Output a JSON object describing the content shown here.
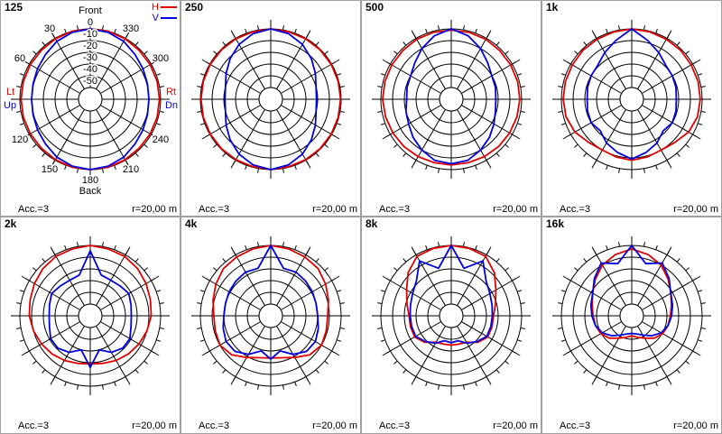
{
  "chart_data": [
    {
      "type": "polar",
      "title": "125",
      "theta": [
        0,
        15,
        30,
        45,
        60,
        75,
        90,
        105,
        120,
        135,
        150,
        165,
        180,
        195,
        210,
        225,
        240,
        255,
        270,
        285,
        300,
        315,
        330,
        345
      ],
      "rlim": [
        -60,
        0
      ],
      "rticks": [
        0,
        -10,
        -20,
        -30,
        -40,
        -50
      ],
      "rtick_labels": true,
      "theta_ticks": [
        30,
        60,
        120,
        150,
        180,
        210,
        240,
        300,
        330
      ],
      "front_label": "Front",
      "back_label": "Back",
      "h_side_labels": [
        "Lt",
        "Rt"
      ],
      "v_side_labels": [
        "Up",
        "Dn"
      ],
      "series": [
        {
          "name": "H",
          "color": "#e00000",
          "values": [
            0,
            0,
            -0.5,
            -1,
            -1,
            -1,
            -1,
            -1,
            -1,
            -1,
            -0.5,
            0,
            0,
            0,
            -0.5,
            -1,
            -1,
            -1,
            -1,
            -1,
            -1,
            -1,
            -0.5,
            0
          ]
        },
        {
          "name": "V",
          "color": "#0000e0",
          "values": [
            0,
            -1,
            -3,
            -6,
            -8,
            -9.5,
            -10,
            -9.5,
            -8,
            -6,
            -3,
            -1,
            0,
            -1,
            -3,
            -6,
            -8,
            -9.5,
            -10,
            -9.5,
            -8,
            -6,
            -3,
            -1
          ]
        }
      ],
      "footer_left": "Acc.=3",
      "footer_right": "r=20,00 m"
    },
    {
      "type": "polar",
      "title": "250",
      "theta": [
        0,
        15,
        30,
        45,
        60,
        75,
        90,
        105,
        120,
        135,
        150,
        165,
        180,
        195,
        210,
        225,
        240,
        255,
        270,
        285,
        300,
        315,
        330,
        345
      ],
      "rlim": [
        -60,
        0
      ],
      "rticks": [
        0,
        -10,
        -20,
        -30,
        -40,
        -50
      ],
      "series": [
        {
          "color": "#e00000",
          "values": [
            0,
            -0.5,
            -0.5,
            -0.5,
            -0.5,
            -0.5,
            -0.5,
            -0.5,
            -0.5,
            -0.5,
            -0.5,
            -0.5,
            0,
            -0.5,
            -0.5,
            -0.5,
            -0.5,
            -0.5,
            -0.5,
            -0.5,
            -0.5,
            -0.5,
            -0.5,
            -0.5
          ]
        },
        {
          "color": "#0000e0",
          "values": [
            0,
            -2,
            -6,
            -11,
            -16,
            -20,
            -21,
            -20,
            -16,
            -11,
            -6,
            -2,
            0,
            -2,
            -6,
            -11,
            -16,
            -20,
            -21,
            -20,
            -16,
            -11,
            -6,
            -2
          ]
        }
      ],
      "footer_left": "Acc.=3",
      "footer_right": "r=20,00 m"
    },
    {
      "type": "polar",
      "title": "500",
      "theta": [
        0,
        15,
        30,
        45,
        60,
        75,
        90,
        105,
        120,
        135,
        150,
        165,
        180,
        195,
        210,
        225,
        240,
        255,
        270,
        285,
        300,
        315,
        330,
        345
      ],
      "rlim": [
        -60,
        0
      ],
      "rticks": [
        0,
        -10,
        -20,
        -30,
        -40,
        -50
      ],
      "series": [
        {
          "color": "#e00000",
          "values": [
            -1,
            -1,
            -1,
            -1.5,
            -1.5,
            -1.5,
            -1.5,
            -2,
            -2.5,
            -3,
            -3.5,
            -4,
            -4,
            -4,
            -3.5,
            -3,
            -2.5,
            -2,
            -1.5,
            -1.5,
            -1.5,
            -1.5,
            -1,
            -1
          ]
        },
        {
          "color": "#0000e0",
          "values": [
            0,
            -4,
            -10,
            -16,
            -20,
            -21,
            -22,
            -20,
            -18,
            -14,
            -10,
            -6,
            -5,
            -6,
            -10,
            -14,
            -18,
            -21,
            -22,
            -21,
            -20,
            -16,
            -10,
            -4
          ]
        }
      ],
      "footer_left": "Acc.=3",
      "footer_right": "r=20,00 m"
    },
    {
      "type": "polar",
      "title": "1k",
      "theta": [
        0,
        15,
        30,
        45,
        60,
        75,
        90,
        105,
        120,
        135,
        150,
        165,
        180,
        195,
        210,
        225,
        240,
        255,
        270,
        285,
        300,
        315,
        330,
        345
      ],
      "rlim": [
        -60,
        0
      ],
      "rticks": [
        0,
        -10,
        -20,
        -30,
        -40,
        -50
      ],
      "series": [
        {
          "color": "#e00000",
          "values": [
            0,
            -0.5,
            -1,
            -1,
            -1.5,
            -1.5,
            -1.5,
            -2,
            -4,
            -8,
            -10,
            -9,
            -8,
            -9,
            -10,
            -8,
            -4,
            -2,
            -1.5,
            -1.5,
            -1.5,
            -1,
            -1,
            -0.5
          ]
        },
        {
          "color": "#0000e0",
          "values": [
            0,
            -8,
            -14,
            -19,
            -20,
            -21,
            -22,
            -21,
            -20,
            -22,
            -17,
            -13,
            -9,
            -13,
            -17,
            -22,
            -20,
            -21,
            -22,
            -21,
            -20,
            -19,
            -14,
            -8
          ]
        }
      ],
      "footer_left": "Acc.=3",
      "footer_right": "r=20,00 m"
    },
    {
      "type": "polar",
      "title": "2k",
      "theta": [
        0,
        15,
        30,
        45,
        60,
        75,
        90,
        105,
        120,
        135,
        150,
        165,
        180,
        195,
        210,
        225,
        240,
        255,
        270,
        285,
        300,
        315,
        330,
        345
      ],
      "rlim": [
        -60,
        0
      ],
      "rticks": [
        0,
        -10,
        -20,
        -30,
        -40,
        -50
      ],
      "series": [
        {
          "color": "#e00000",
          "values": [
            0,
            -1,
            -1.5,
            -3,
            -5,
            -7,
            -8,
            -10,
            -12,
            -14,
            -16,
            -18,
            -19,
            -18,
            -16,
            -14,
            -12,
            -10,
            -8,
            -7,
            -5,
            -3,
            -1.5,
            -1
          ]
        },
        {
          "color": "#0000e0",
          "values": [
            -4.5,
            -24,
            -25,
            -24,
            -22,
            -24,
            -25,
            -24,
            -21,
            -21,
            -24,
            -30,
            -16,
            -30,
            -24,
            -21,
            -21,
            -24,
            -25,
            -24,
            -22,
            -24,
            -25,
            -24
          ]
        }
      ],
      "footer_left": "Acc.=3",
      "footer_right": "r=20,00 m"
    },
    {
      "type": "polar",
      "title": "4k",
      "theta": [
        0,
        15,
        30,
        45,
        60,
        75,
        90,
        105,
        120,
        135,
        150,
        165,
        180,
        195,
        210,
        225,
        240,
        255,
        270,
        285,
        300,
        315,
        330,
        345
      ],
      "rlim": [
        -60,
        0
      ],
      "rticks": [
        0,
        -10,
        -20,
        -30,
        -40,
        -50
      ],
      "series": [
        {
          "color": "#e00000",
          "values": [
            0,
            -1,
            -2,
            -3,
            -6,
            -9,
            -11.5,
            -11,
            -10,
            -13,
            -19,
            -23,
            -24,
            -23,
            -19,
            -13,
            -10,
            -11,
            -11.5,
            -9,
            -6,
            -3,
            -2,
            -1
          ]
        },
        {
          "color": "#0000e0",
          "values": [
            0,
            -18,
            -17,
            -18,
            -19,
            -20,
            -20,
            -18,
            -16,
            -17,
            -22,
            -29,
            -23,
            -29,
            -22,
            -17,
            -16,
            -18,
            -20,
            -20,
            -19,
            -18,
            -17,
            -18
          ]
        }
      ],
      "footer_left": "Acc.=3",
      "footer_right": "r=20,00 m"
    },
    {
      "type": "polar",
      "title": "8k",
      "theta": [
        0,
        15,
        30,
        45,
        60,
        75,
        90,
        105,
        120,
        135,
        150,
        165,
        180,
        195,
        210,
        225,
        240,
        255,
        270,
        285,
        300,
        315,
        330,
        345
      ],
      "rlim": [
        -60,
        0
      ],
      "rticks": [
        0,
        -10,
        -20,
        -30,
        -40,
        -50
      ],
      "series": [
        {
          "color": "#e00000",
          "values": [
            0,
            -0.5,
            -1.5,
            -8,
            -16,
            -21,
            -24,
            -24,
            -24,
            -28,
            -34,
            -35,
            -35,
            -35,
            -34,
            -28,
            -24,
            -24,
            -24,
            -21,
            -16,
            -8,
            -1.5,
            -0.5
          ]
        },
        {
          "color": "#0000e0",
          "values": [
            0,
            -18,
            -6,
            -18,
            -22,
            -24,
            -25,
            -25,
            -25,
            -29,
            -33,
            -38,
            -37,
            -38,
            -33,
            -29,
            -25,
            -25,
            -25,
            -24,
            -22,
            -18,
            -6,
            -18
          ]
        }
      ],
      "footer_left": "Acc.=3",
      "footer_right": "r=20,00 m"
    },
    {
      "type": "polar",
      "title": "16k",
      "theta": [
        0,
        15,
        30,
        45,
        60,
        75,
        90,
        105,
        120,
        135,
        150,
        165,
        180,
        195,
        210,
        225,
        240,
        255,
        270,
        285,
        300,
        315,
        330,
        345
      ],
      "rlim": [
        -60,
        0
      ],
      "rticks": [
        0,
        -10,
        -20,
        -30,
        -40,
        -50
      ],
      "series": [
        {
          "color": "#e00000",
          "values": [
            -3,
            -6,
            -10,
            -16,
            -21.5,
            -25,
            -27,
            -28,
            -29.5,
            -33,
            -38,
            -41,
            -43,
            -41,
            -38,
            -33,
            -29.5,
            -28,
            -27,
            -25,
            -21.5,
            -16,
            -10,
            -6
          ]
        },
        {
          "color": "#0000e0",
          "values": [
            0,
            -14,
            -8,
            -15,
            -21.5,
            -24,
            -26,
            -28,
            -31,
            -36,
            -41,
            -44,
            -45,
            -44,
            -41,
            -36,
            -31,
            -28,
            -26,
            -24,
            -21.5,
            -15,
            -8,
            -14
          ]
        }
      ],
      "footer_left": "Acc.=3",
      "footer_right": "r=20,00 m"
    }
  ]
}
